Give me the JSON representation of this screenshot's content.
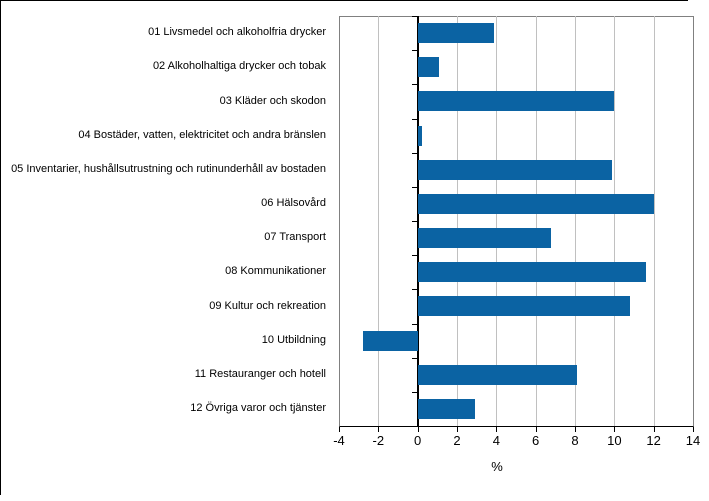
{
  "figure": {
    "background": "#ffffff",
    "outer_border_color": "#000000",
    "plot_border_color": "#808080"
  },
  "chart_data": {
    "type": "bar",
    "orientation": "horizontal",
    "title": "",
    "xlabel": "%",
    "ylabel": "",
    "xlim": [
      -4,
      14
    ],
    "xticks": [
      -4,
      -2,
      0,
      2,
      4,
      6,
      8,
      10,
      12,
      14
    ],
    "grid": true,
    "legend": "none",
    "bar_color": "#0b63a3",
    "gridline_color": "#c0c0c0",
    "categories": [
      "01 Livsmedel och alkoholfria drycker",
      "02 Alkoholhaltiga drycker och tobak",
      "03 Kläder och skodon",
      "04 Bostäder, vatten, elektricitet och andra bränslen",
      "05 Inventarier, hushållsutrustning och rutinunderhåll av bostaden",
      "06 Hälsovård",
      "07 Transport",
      "08 Kommunikationer",
      "09 Kultur och rekreation",
      "10 Utbildning",
      "11 Restauranger och hotell",
      "12 Övriga varor och tjänster"
    ],
    "values": [
      3.9,
      1.1,
      10.0,
      0.2,
      9.9,
      12.0,
      6.8,
      11.6,
      10.8,
      -2.8,
      8.1,
      2.9
    ]
  }
}
